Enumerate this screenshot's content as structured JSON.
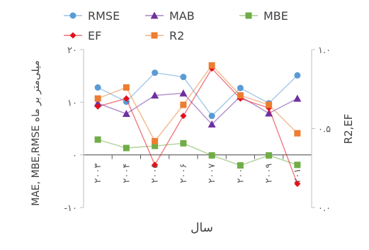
{
  "chart_data": {
    "type": "line",
    "title": "",
    "xlabel": "سال",
    "ylabel_left": "MAE, MBE,RMSE میلی‌متر بر ماه",
    "ylabel_right": "R2,EF",
    "categories": [
      "۲۰۰۳",
      "۲۰۰۴",
      "۲۰۰۵",
      "۲۰۰۶",
      "۲۰۰۷",
      "۲۰۰۸",
      "۲۰۰۹",
      "۲۰۱۰"
    ],
    "left_axis": {
      "ylim": [
        -10,
        20
      ],
      "ticks": [
        "-۱۰",
        "۰",
        "۱۰",
        "۲۰"
      ]
    },
    "right_axis": {
      "ylim": [
        0,
        1
      ],
      "ticks": [
        "۰.۰",
        "۰.۵",
        "۱.۰"
      ]
    },
    "legend_position": "top",
    "series": [
      {
        "name": "RMSE",
        "axis": "left",
        "color": "#5b9bd5",
        "marker": "circle",
        "values": [
          12.8,
          10.1,
          15.6,
          14.8,
          7.4,
          12.7,
          9.8,
          15.1
        ]
      },
      {
        "name": "MAB",
        "axis": "left",
        "color": "#7030a0",
        "marker": "triangle",
        "values": [
          9.8,
          7.8,
          11.3,
          11.7,
          5.8,
          11.1,
          7.9,
          10.7
        ]
      },
      {
        "name": "MBE",
        "axis": "left",
        "color": "#70ad47",
        "marker": "square",
        "values": [
          2.9,
          1.3,
          1.7,
          2.2,
          -0.1,
          -2.0,
          -0.1,
          -1.9
        ]
      },
      {
        "name": "EF",
        "axis": "right",
        "color": "#e3101a",
        "marker": "diamond",
        "values": [
          0.64,
          0.69,
          0.27,
          0.58,
          0.88,
          0.69,
          0.63,
          0.15
        ]
      },
      {
        "name": "R2",
        "axis": "right",
        "color": "#ed7d31",
        "marker": "square",
        "values": [
          0.69,
          0.76,
          0.42,
          0.65,
          0.9,
          0.71,
          0.65,
          0.47
        ]
      }
    ]
  }
}
